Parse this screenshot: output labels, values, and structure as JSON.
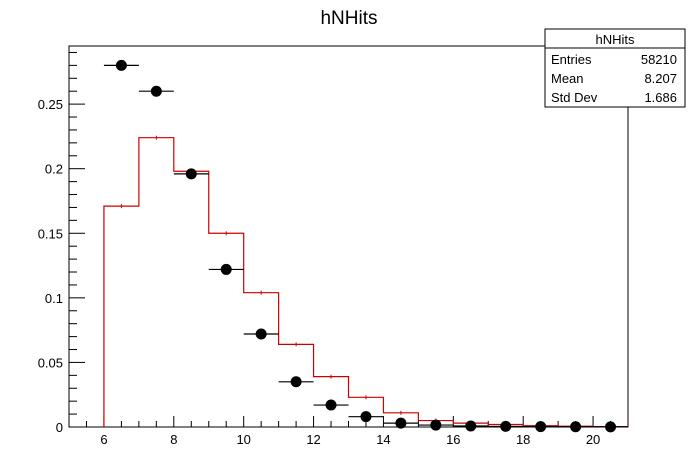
{
  "chart_data": {
    "type": "histogram",
    "title": "hNHits",
    "xlabel": "",
    "ylabel": "",
    "xlim": [
      5,
      21
    ],
    "ylim": [
      0,
      0.295
    ],
    "x_ticks": [
      6,
      8,
      10,
      12,
      14,
      16,
      18,
      20
    ],
    "y_ticks": [
      0,
      0.05,
      0.1,
      0.15,
      0.2,
      0.25
    ],
    "x_tick_labels": [
      "6",
      "8",
      "10",
      "12",
      "14",
      "16",
      "18",
      "20"
    ],
    "y_tick_labels": [
      "0",
      "0.05",
      "0.1",
      "0.15",
      "0.2",
      "0.25"
    ],
    "grid": false,
    "bin_width": 1,
    "bin_centers": [
      6.5,
      7.5,
      8.5,
      9.5,
      10.5,
      11.5,
      12.5,
      13.5,
      14.5,
      15.5,
      16.5,
      17.5,
      18.5,
      19.5,
      20.5
    ],
    "series": [
      {
        "style": "histogram-line",
        "color": "#cc0000",
        "bin_edges": [
          6,
          7,
          8,
          9,
          10,
          11,
          12,
          13,
          14,
          15,
          16,
          17,
          18,
          19,
          20,
          21
        ],
        "values": [
          0.171,
          0.224,
          0.198,
          0.15,
          0.104,
          0.064,
          0.039,
          0.023,
          0.011,
          0.005,
          0.003,
          0.002,
          0.001,
          0.0006,
          0.0003
        ]
      },
      {
        "style": "markers",
        "color": "#000000",
        "x": [
          6.5,
          7.5,
          8.5,
          9.5,
          10.5,
          11.5,
          12.5,
          13.5,
          14.5,
          15.5,
          16.5,
          17.5,
          18.5,
          19.5,
          20.5
        ],
        "values": [
          0.28,
          0.26,
          0.196,
          0.122,
          0.072,
          0.035,
          0.017,
          0.008,
          0.003,
          0.0015,
          0.0008,
          0.0005,
          0.0003,
          0.0002,
          0.0001
        ]
      }
    ],
    "stats_box": {
      "title": "hNHits",
      "placement": "top-right",
      "rows": [
        {
          "label": "Entries",
          "value": "58210"
        },
        {
          "label": "Mean",
          "value": "8.207"
        },
        {
          "label": "Std Dev",
          "value": "1.686"
        }
      ]
    }
  }
}
